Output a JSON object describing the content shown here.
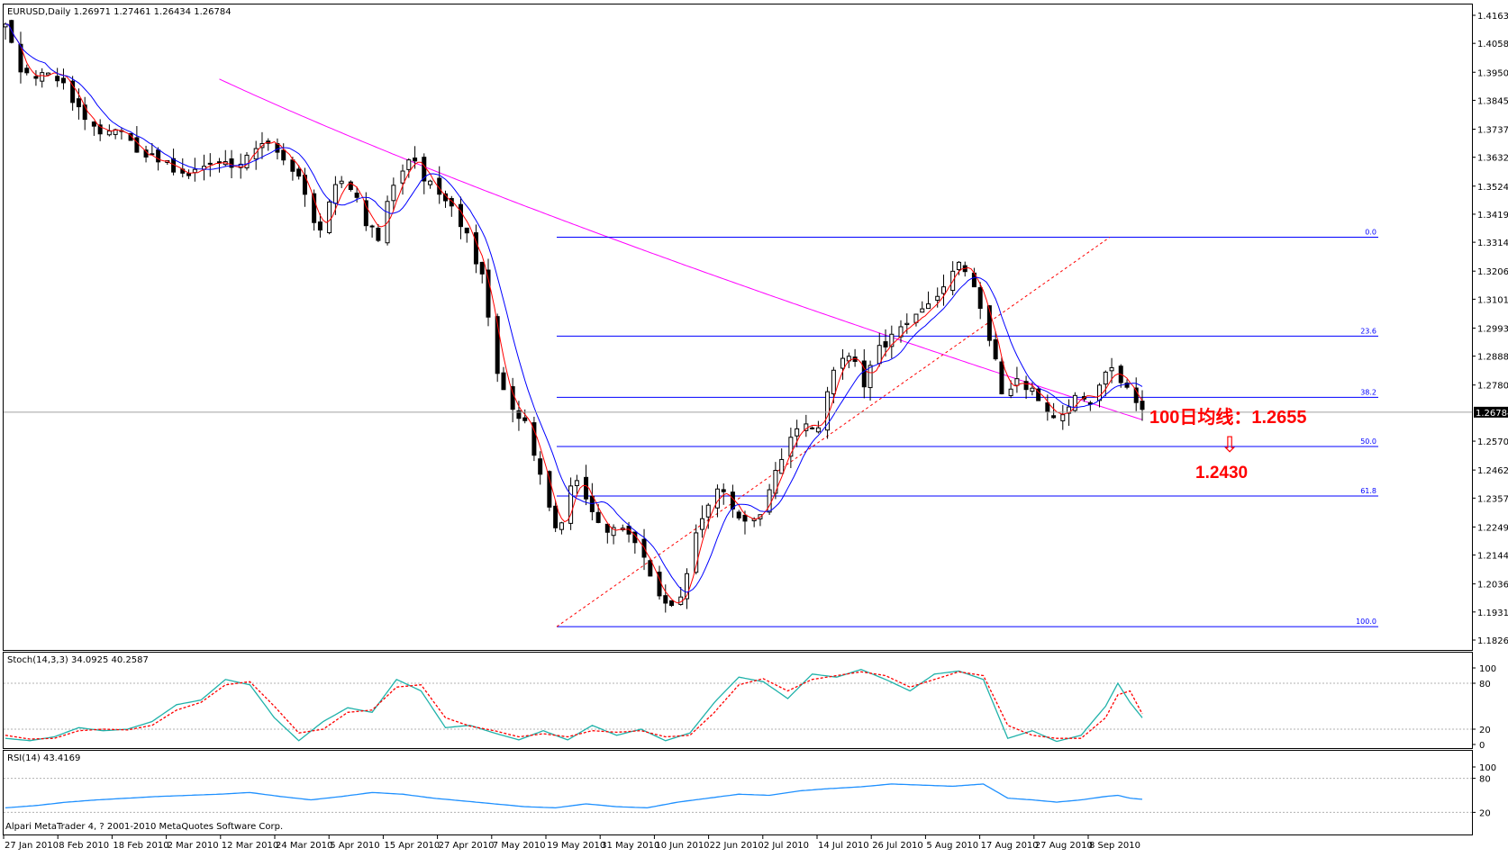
{
  "window": {
    "header": "EURUSD,Daily  1.26971 1.27461 1.26434 1.26784",
    "copyright": "Alpari MetaTrader 4, ? 2001-2010 MetaQuotes Software Corp."
  },
  "chart_data": [
    {
      "type": "candlestick",
      "title": "EURUSD,Daily",
      "ohlc_last": {
        "open": 1.26971,
        "high": 1.27461,
        "low": 1.26434,
        "close": 1.26784
      },
      "current_price_label": "1.26784",
      "ylim": [
        1.1826,
        1.4163
      ],
      "y_ticks": [
        "1.41630",
        "1.40580",
        "1.39500",
        "1.38450",
        "1.37370",
        "1.36320",
        "1.35240",
        "1.34190",
        "1.33140",
        "1.32060",
        "1.31010",
        "1.29930",
        "1.28880",
        "1.27800",
        "1.26784",
        "1.25700",
        "1.24620",
        "1.23570",
        "1.22490",
        "1.21440",
        "1.20360",
        "1.19310",
        "1.18260"
      ],
      "x_ticks": [
        "27 Jan 2010",
        "8 Feb 2010",
        "18 Feb 2010",
        "2 Mar 2010",
        "12 Mar 2010",
        "24 Mar 2010",
        "5 Apr 2010",
        "15 Apr 2010",
        "27 Apr 2010",
        "7 May 2010",
        "19 May 2010",
        "31 May 2010",
        "10 Jun 2010",
        "22 Jun 2010",
        "2 Jul 2010",
        "14 Jul 2010",
        "26 Jul 2010",
        "5 Aug 2010",
        "17 Aug 2010",
        "27 Aug 2010",
        "8 Sep 2010"
      ],
      "fibonacci": {
        "levels": [
          {
            "label": "0.0",
            "price": 1.3333
          },
          {
            "label": "23.6",
            "price": 1.2963
          },
          {
            "label": "38.2",
            "price": 1.2734
          },
          {
            "label": "50.0",
            "price": 1.255
          },
          {
            "label": "61.8",
            "price": 1.2365
          },
          {
            "label": "100.0",
            "price": 1.1876
          }
        ]
      },
      "close_path": [
        [
          0,
          1.415
        ],
        [
          5,
          1.395
        ],
        [
          10,
          1.392
        ],
        [
          15,
          1.396
        ],
        [
          20,
          1.39
        ],
        [
          25,
          1.378
        ],
        [
          30,
          1.372
        ],
        [
          35,
          1.375
        ],
        [
          40,
          1.369
        ],
        [
          45,
          1.364
        ],
        [
          50,
          1.362
        ],
        [
          55,
          1.359
        ],
        [
          60,
          1.357
        ],
        [
          65,
          1.36
        ],
        [
          70,
          1.361
        ],
        [
          75,
          1.358
        ],
        [
          80,
          1.366
        ],
        [
          85,
          1.371
        ],
        [
          90,
          1.365
        ],
        [
          95,
          1.358
        ],
        [
          100,
          1.341
        ],
        [
          103,
          1.337
        ],
        [
          108,
          1.352
        ],
        [
          112,
          1.355
        ],
        [
          117,
          1.341
        ],
        [
          122,
          1.334
        ],
        [
          127,
          1.352
        ],
        [
          132,
          1.364
        ],
        [
          136,
          1.358
        ],
        [
          141,
          1.349
        ],
        [
          146,
          1.343
        ],
        [
          151,
          1.334
        ],
        [
          156,
          1.318
        ],
        [
          161,
          1.283
        ],
        [
          166,
          1.267
        ],
        [
          171,
          1.262
        ],
        [
          176,
          1.24
        ],
        [
          181,
          1.221
        ],
        [
          186,
          1.245
        ],
        [
          191,
          1.234
        ],
        [
          196,
          1.223
        ],
        [
          201,
          1.224
        ],
        [
          206,
          1.218
        ],
        [
          211,
          1.208
        ],
        [
          216,
          1.196
        ],
        [
          221,
          1.198
        ],
        [
          226,
          1.222
        ],
        [
          231,
          1.238
        ],
        [
          236,
          1.236
        ],
        [
          241,
          1.228
        ],
        [
          246,
          1.228
        ],
        [
          251,
          1.244
        ],
        [
          256,
          1.256
        ],
        [
          261,
          1.263
        ],
        [
          266,
          1.262
        ],
        [
          271,
          1.283
        ],
        [
          276,
          1.289
        ],
        [
          281,
          1.279
        ],
        [
          286,
          1.291
        ],
        [
          291,
          1.297
        ],
        [
          296,
          1.301
        ],
        [
          301,
          1.306
        ],
        [
          306,
          1.314
        ],
        [
          311,
          1.323
        ],
        [
          316,
          1.32
        ],
        [
          321,
          1.301
        ],
        [
          326,
          1.276
        ],
        [
          331,
          1.28
        ],
        [
          336,
          1.275
        ],
        [
          341,
          1.267
        ],
        [
          346,
          1.268
        ],
        [
          351,
          1.275
        ],
        [
          356,
          1.272
        ],
        [
          361,
          1.284
        ],
        [
          366,
          1.278
        ],
        [
          371,
          1.268
        ]
      ],
      "series": [
        {
          "name": "MA red",
          "color": "#ff0000"
        },
        {
          "name": "MA blue",
          "color": "#0000ff"
        },
        {
          "name": "MA 100",
          "color": "#ff00ff"
        }
      ],
      "annotations": [
        {
          "text": "100日均线：1.2655",
          "color": "#ff0000"
        },
        {
          "text": "⇩",
          "color": "#ff0000"
        },
        {
          "text": "1.2430",
          "color": "#ff0000"
        }
      ]
    },
    {
      "type": "line",
      "title": "Stoch(14,3,3) 34.0925 40.2587",
      "y_ticks": [
        "100",
        "80",
        "20",
        "0"
      ],
      "ylim": [
        0,
        100
      ],
      "series": [
        {
          "name": "%K",
          "color": "#20b2aa",
          "values": [
            [
              0,
              8
            ],
            [
              8,
              5
            ],
            [
              16,
              10
            ],
            [
              24,
              22
            ],
            [
              32,
              18
            ],
            [
              40,
              20
            ],
            [
              48,
              30
            ],
            [
              56,
              52
            ],
            [
              64,
              58
            ],
            [
              72,
              85
            ],
            [
              80,
              78
            ],
            [
              88,
              35
            ],
            [
              96,
              5
            ],
            [
              104,
              30
            ],
            [
              112,
              48
            ],
            [
              120,
              42
            ],
            [
              128,
              85
            ],
            [
              136,
              70
            ],
            [
              144,
              22
            ],
            [
              152,
              25
            ],
            [
              160,
              15
            ],
            [
              168,
              6
            ],
            [
              176,
              18
            ],
            [
              184,
              6
            ],
            [
              192,
              25
            ],
            [
              200,
              12
            ],
            [
              208,
              20
            ],
            [
              216,
              5
            ],
            [
              224,
              15
            ],
            [
              232,
              55
            ],
            [
              240,
              88
            ],
            [
              248,
              82
            ],
            [
              256,
              60
            ],
            [
              264,
              92
            ],
            [
              272,
              88
            ],
            [
              280,
              98
            ],
            [
              288,
              85
            ],
            [
              296,
              70
            ],
            [
              304,
              92
            ],
            [
              312,
              96
            ],
            [
              320,
              85
            ],
            [
              328,
              8
            ],
            [
              336,
              18
            ],
            [
              344,
              4
            ],
            [
              352,
              12
            ],
            [
              360,
              50
            ],
            [
              364,
              80
            ],
            [
              368,
              55
            ],
            [
              372,
              35
            ]
          ]
        },
        {
          "name": "%D",
          "color": "#ff0000",
          "values": [
            [
              0,
              12
            ],
            [
              8,
              7
            ],
            [
              16,
              8
            ],
            [
              24,
              18
            ],
            [
              32,
              20
            ],
            [
              40,
              19
            ],
            [
              48,
              25
            ],
            [
              56,
              45
            ],
            [
              64,
              55
            ],
            [
              72,
              78
            ],
            [
              80,
              82
            ],
            [
              88,
              50
            ],
            [
              96,
              15
            ],
            [
              104,
              20
            ],
            [
              112,
              42
            ],
            [
              120,
              45
            ],
            [
              128,
              75
            ],
            [
              136,
              78
            ],
            [
              144,
              35
            ],
            [
              152,
              24
            ],
            [
              160,
              18
            ],
            [
              168,
              10
            ],
            [
              176,
              14
            ],
            [
              184,
              10
            ],
            [
              192,
              18
            ],
            [
              200,
              16
            ],
            [
              208,
              18
            ],
            [
              216,
              10
            ],
            [
              224,
              12
            ],
            [
              232,
              42
            ],
            [
              240,
              78
            ],
            [
              248,
              86
            ],
            [
              256,
              70
            ],
            [
              264,
              85
            ],
            [
              272,
              90
            ],
            [
              280,
              95
            ],
            [
              288,
              90
            ],
            [
              296,
              75
            ],
            [
              304,
              85
            ],
            [
              312,
              95
            ],
            [
              320,
              90
            ],
            [
              328,
              25
            ],
            [
              336,
              12
            ],
            [
              344,
              8
            ],
            [
              352,
              8
            ],
            [
              360,
              35
            ],
            [
              364,
              65
            ],
            [
              368,
              70
            ],
            [
              372,
              40
            ]
          ]
        }
      ]
    },
    {
      "type": "line",
      "title": "RSI(14) 43.4169",
      "y_ticks": [
        "100",
        "80",
        "20"
      ],
      "ylim": [
        0,
        100
      ],
      "series": [
        {
          "name": "RSI",
          "color": "#1e90ff",
          "values": [
            [
              0,
              28
            ],
            [
              10,
              32
            ],
            [
              20,
              38
            ],
            [
              30,
              42
            ],
            [
              40,
              45
            ],
            [
              50,
              48
            ],
            [
              60,
              50
            ],
            [
              70,
              52
            ],
            [
              80,
              55
            ],
            [
              90,
              48
            ],
            [
              100,
              42
            ],
            [
              110,
              48
            ],
            [
              120,
              55
            ],
            [
              130,
              52
            ],
            [
              140,
              45
            ],
            [
              150,
              40
            ],
            [
              160,
              35
            ],
            [
              170,
              30
            ],
            [
              180,
              28
            ],
            [
              190,
              35
            ],
            [
              200,
              30
            ],
            [
              210,
              28
            ],
            [
              220,
              38
            ],
            [
              230,
              45
            ],
            [
              240,
              52
            ],
            [
              250,
              50
            ],
            [
              260,
              58
            ],
            [
              270,
              62
            ],
            [
              280,
              65
            ],
            [
              290,
              70
            ],
            [
              300,
              68
            ],
            [
              310,
              66
            ],
            [
              320,
              70
            ],
            [
              328,
              45
            ],
            [
              336,
              42
            ],
            [
              344,
              38
            ],
            [
              352,
              42
            ],
            [
              360,
              48
            ],
            [
              364,
              50
            ],
            [
              368,
              45
            ],
            [
              372,
              43
            ]
          ]
        }
      ]
    }
  ]
}
